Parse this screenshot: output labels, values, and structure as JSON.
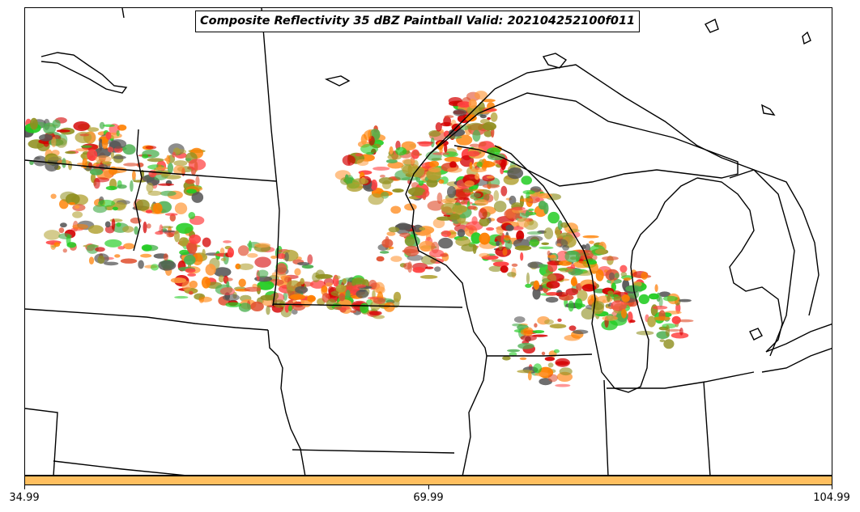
{
  "title": "Composite Reflectivity 35 dBZ Paintball Valid: 202104252100f011",
  "colorbar": {
    "color": "#ffbf5f",
    "ticks": [
      "34.99",
      "69.99",
      "104.99"
    ]
  },
  "member_colors": [
    "#d40000",
    "#ff8000",
    "#ff9a3c",
    "#22cc22",
    "#4caf50",
    "#8f8f1f",
    "#b0a030",
    "#555555",
    "#ff4040",
    "#e05030"
  ],
  "icons": {
    "state-borders": "black-line",
    "coastlines": "black-line"
  }
}
